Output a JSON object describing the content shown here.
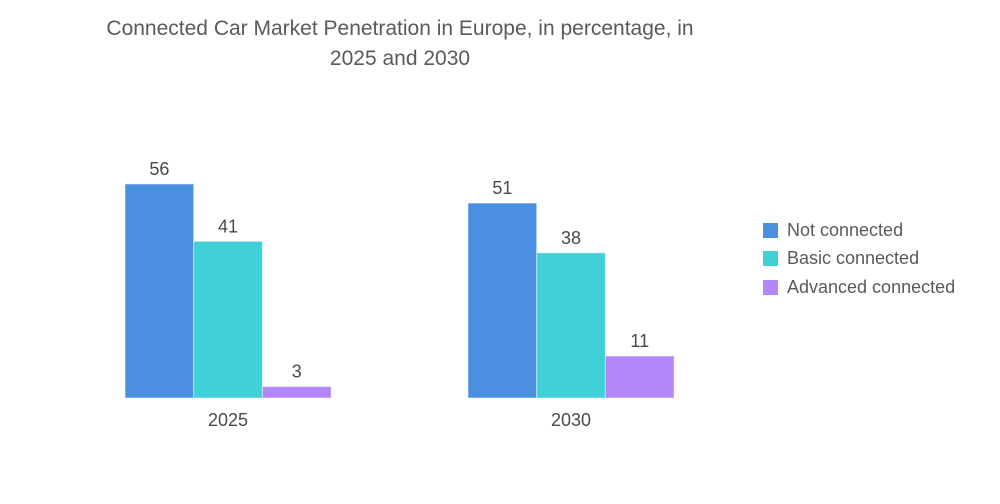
{
  "chart_data": {
    "type": "bar",
    "title": "Connected Car Market Penetration in Europe, in percentage, in 2025 and 2030",
    "title_lines": [
      "Connected Car Market Penetration in Europe, in percentage, in",
      "2025 and 2030"
    ],
    "categories": [
      "2025",
      "2030"
    ],
    "series": [
      {
        "name": "Not connected",
        "color": "#4a8fe0",
        "values": [
          56,
          51
        ]
      },
      {
        "name": "Basic connected",
        "color": "#40d0d8",
        "values": [
          41,
          38
        ]
      },
      {
        "name": "Advanced connected",
        "color": "#b386f9",
        "values": [
          3,
          11
        ]
      }
    ],
    "xlabel": "",
    "ylabel": "",
    "ylim": [
      0,
      56
    ],
    "grid": false,
    "data_labels": true,
    "legend_position": "right"
  }
}
